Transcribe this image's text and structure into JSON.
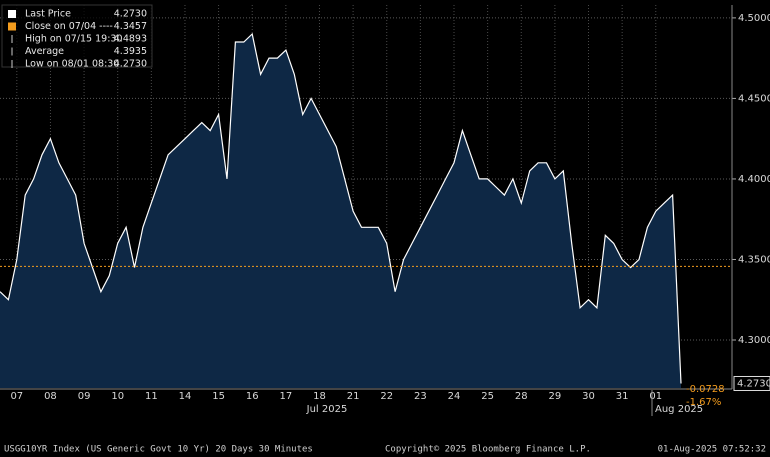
{
  "chart_data": {
    "type": "area",
    "series": [
      {
        "name": "Last Price",
        "color": "#ffffff",
        "fill": "#0e2845",
        "values": [
          4.33,
          4.325,
          4.35,
          4.39,
          4.4,
          4.415,
          4.425,
          4.41,
          4.4,
          4.39,
          4.36,
          4.345,
          4.33,
          4.34,
          4.36,
          4.37,
          4.345,
          4.37,
          4.385,
          4.4,
          4.415,
          4.42,
          4.425,
          4.43,
          4.435,
          4.43,
          4.44,
          4.4,
          4.485,
          4.485,
          4.49,
          4.465,
          4.475,
          4.475,
          4.48,
          4.465,
          4.44,
          4.45,
          4.44,
          4.43,
          4.42,
          4.4,
          4.38,
          4.37,
          4.37,
          4.37,
          4.36,
          4.33,
          4.35,
          4.36,
          4.37,
          4.38,
          4.39,
          4.4,
          4.41,
          4.43,
          4.415,
          4.4,
          4.4,
          4.395,
          4.39,
          4.4,
          4.385,
          4.405,
          4.41,
          4.41,
          4.4,
          4.405,
          4.36,
          4.32,
          4.325,
          4.32,
          4.365,
          4.36,
          4.35,
          4.345,
          4.35,
          4.37,
          4.38,
          4.385,
          4.39,
          4.273
        ]
      }
    ],
    "categories": [
      null,
      null,
      "07",
      null,
      null,
      null,
      "08",
      null,
      null,
      null,
      "09",
      null,
      null,
      null,
      "10",
      null,
      null,
      null,
      "11",
      null,
      null,
      null,
      "14",
      null,
      null,
      null,
      "15",
      null,
      null,
      null,
      "16",
      null,
      null,
      null,
      "17",
      null,
      null,
      null,
      "18",
      null,
      null,
      null,
      "21",
      null,
      null,
      null,
      "22",
      null,
      null,
      null,
      "23",
      null,
      null,
      null,
      "24",
      null,
      null,
      null,
      "25",
      null,
      null,
      null,
      "28",
      null,
      null,
      null,
      "29",
      null,
      null,
      null,
      "30",
      null,
      null,
      null,
      "31",
      null,
      null,
      null,
      "01",
      null,
      null,
      null
    ],
    "month_labels": [
      "Jul 2025",
      "Aug 2025"
    ],
    "ylim": [
      4.2702,
      4.508
    ],
    "yticks": [
      {
        "value": 4.3,
        "label": "4.3000"
      },
      {
        "value": 4.35,
        "label": "4.3500"
      },
      {
        "value": 4.4,
        "label": "4.4000"
      },
      {
        "value": 4.45,
        "label": "4.4500"
      },
      {
        "value": 4.5,
        "label": "4.5000"
      }
    ],
    "grid": true,
    "close_line": {
      "value": 4.3457,
      "label": "4.3457",
      "color": "#f39c1e"
    },
    "last_label": {
      "value": 4.273,
      "label": "4.2730"
    },
    "change": {
      "value": -0.0728,
      "label": "-0.0728"
    },
    "change_pct": {
      "value": -1.67,
      "label": "-1.67%"
    },
    "legend": [
      {
        "label": "Last Price",
        "value": "4.2730"
      },
      {
        "label": "Close on 07/04 ----",
        "value": "4.3457"
      },
      {
        "label": "High on 07/15 19:30",
        "value": "4.4893"
      },
      {
        "label": "Average",
        "value": "4.3935"
      },
      {
        "label": "Low on 08/01 08:30",
        "value": "4.2730"
      }
    ]
  },
  "footer": {
    "left": "USGG10YR Index (US Generic Govt 10 Yr) 20 Days 30 Minutes",
    "center": "Copyright© 2025 Bloomberg Finance L.P.",
    "right": "01-Aug-2025 07:52:32"
  }
}
